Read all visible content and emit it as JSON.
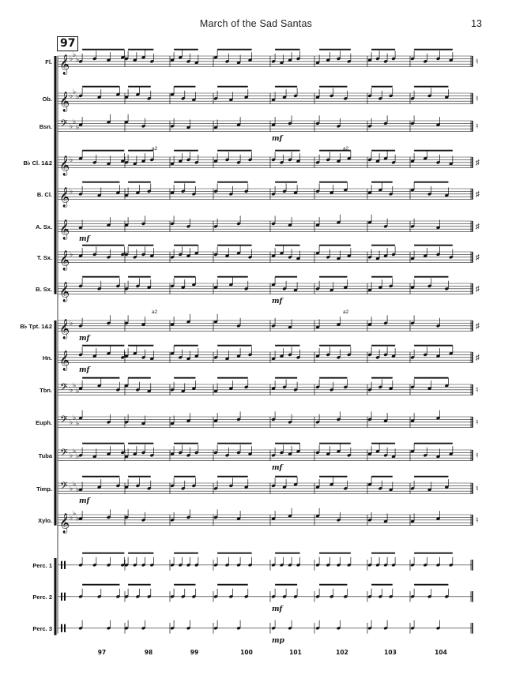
{
  "header": {
    "title": "March of the Sad Santas",
    "page_number": "13"
  },
  "rehearsal_mark": "97",
  "instruments": [
    {
      "label": "Fl.",
      "clef": "treble",
      "flats": 3,
      "next_key": "natural"
    },
    {
      "label": "Ob.",
      "clef": "treble",
      "flats": 3,
      "next_key": "natural"
    },
    {
      "label": "Bsn.",
      "clef": "bass",
      "flats": 3,
      "next_key": "natural"
    },
    {
      "label": "B♭ Cl. 1&2",
      "clef": "treble",
      "flats": 1,
      "next_key": "sharp"
    },
    {
      "label": "B. Cl.",
      "clef": "treble",
      "flats": 1,
      "next_key": "sharp"
    },
    {
      "label": "A. Sx.",
      "clef": "treble",
      "flats": 0,
      "next_key": "sharp"
    },
    {
      "label": "T. Sx.",
      "clef": "treble",
      "flats": 1,
      "next_key": "sharp"
    },
    {
      "label": "B. Sx.",
      "clef": "treble",
      "flats": 0,
      "next_key": "sharp"
    },
    {
      "label": "B♭ Tpt. 1&2",
      "clef": "treble",
      "flats": 1,
      "next_key": "sharp"
    },
    {
      "label": "Hn.",
      "clef": "treble",
      "flats": 0,
      "next_key": "sharp"
    },
    {
      "label": "Tbn.",
      "clef": "bass",
      "flats": 3,
      "next_key": "natural"
    },
    {
      "label": "Euph.",
      "clef": "bass",
      "flats": 3,
      "next_key": "natural"
    },
    {
      "label": "Tuba",
      "clef": "bass",
      "flats": 3,
      "next_key": "natural"
    },
    {
      "label": "Timp.",
      "clef": "bass",
      "flats": 3,
      "next_key": "natural"
    },
    {
      "label": "Xylo.",
      "clef": "treble",
      "flats": 3,
      "next_key": "natural"
    },
    {
      "label": "Perc. 1",
      "clef": "perc",
      "flats": 0,
      "next_key": "none"
    },
    {
      "label": "Perc. 2",
      "clef": "perc",
      "flats": 0,
      "next_key": "none"
    },
    {
      "label": "Perc. 3",
      "clef": "perc",
      "flats": 0,
      "next_key": "none"
    }
  ],
  "measure_numbers": [
    "97",
    "98",
    "99",
    "100",
    "101",
    "102",
    "103",
    "104"
  ],
  "dynamics": [
    {
      "text": "mf",
      "staff": 5,
      "measure": 0
    },
    {
      "text": "mf",
      "staff": 2,
      "measure": 4
    },
    {
      "text": "mf",
      "staff": 7,
      "measure": 4
    },
    {
      "text": "mf",
      "staff": 8,
      "measure": 0
    },
    {
      "text": "mf",
      "staff": 9,
      "measure": 0
    },
    {
      "text": "mf",
      "staff": 12,
      "measure": 4
    },
    {
      "text": "mf",
      "staff": 13,
      "measure": 0
    },
    {
      "text": "mf",
      "staff": 16,
      "measure": 4
    },
    {
      "text": "mp",
      "staff": 17,
      "measure": 4
    }
  ],
  "a2_marks": [
    {
      "text": "a2",
      "staff": 3,
      "measure": 1
    },
    {
      "text": "a2",
      "staff": 3,
      "measure": 5
    },
    {
      "text": "a2",
      "staff": 8,
      "measure": 1
    },
    {
      "text": "a2",
      "staff": 8,
      "measure": 5
    }
  ]
}
